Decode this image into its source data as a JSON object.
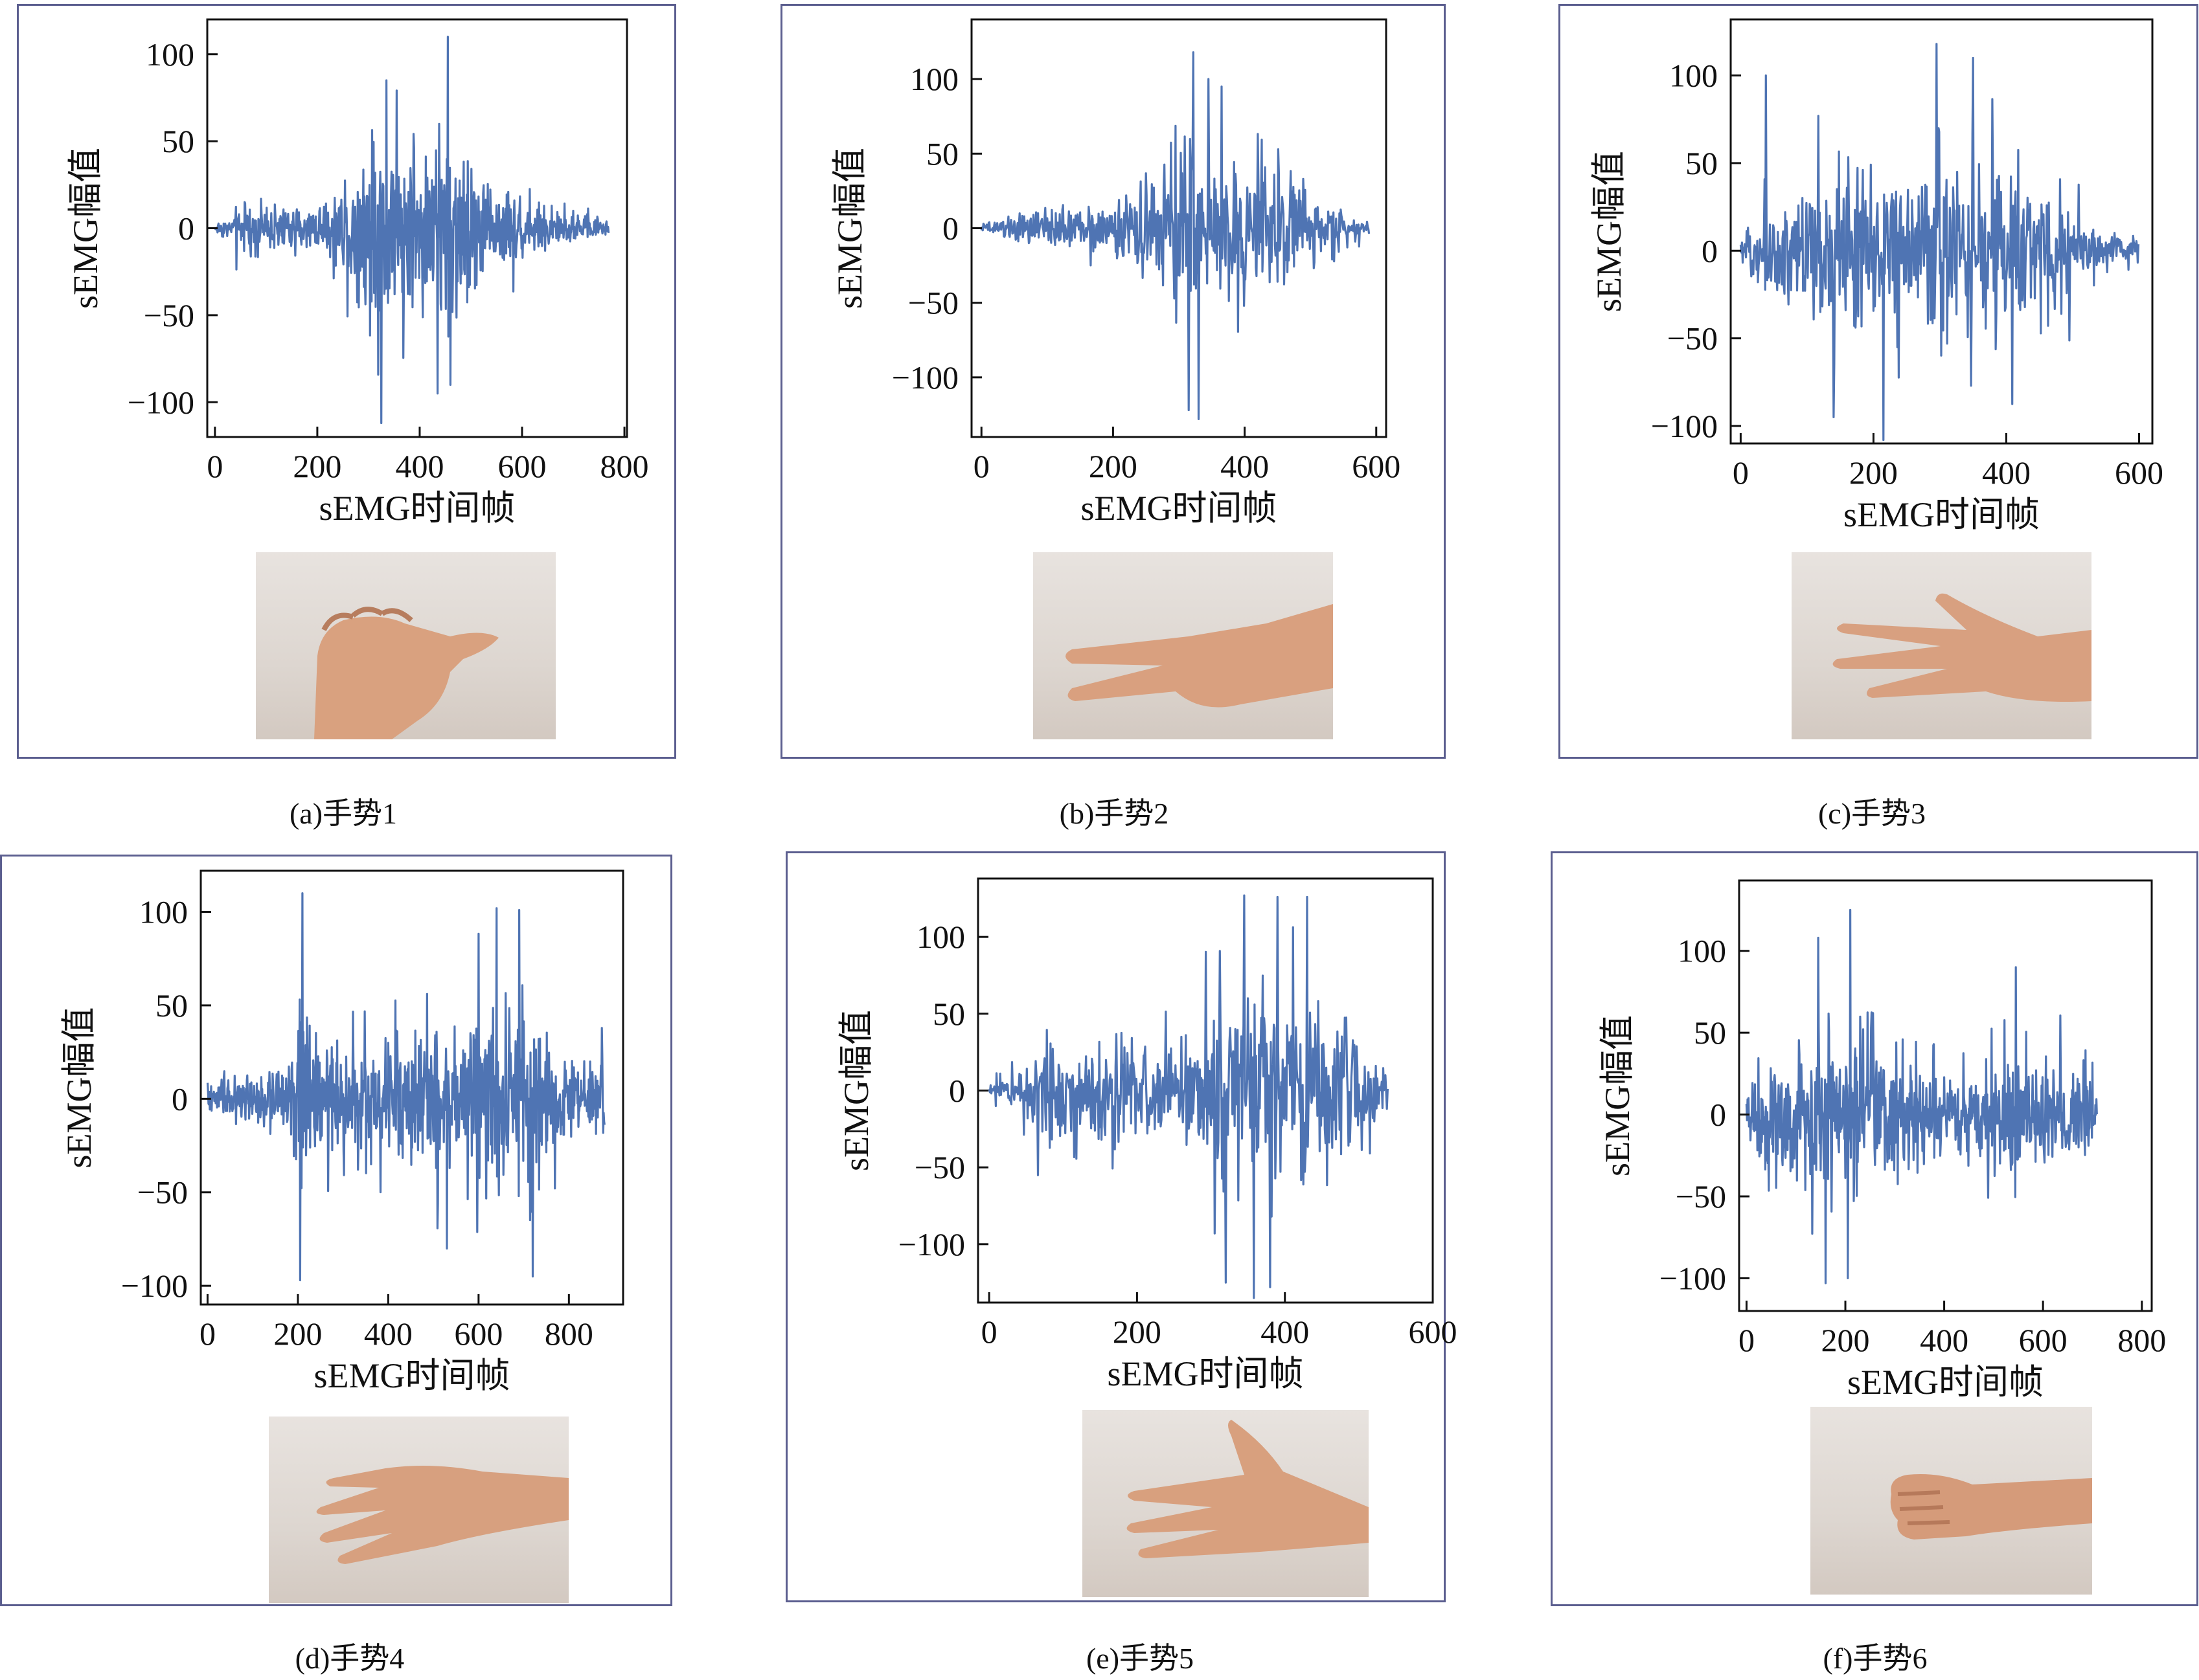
{
  "panels": [
    {
      "caption": "(a)手势1",
      "image": "hand-gesture-thumb-out-fist",
      "chart_data": {
        "type": "line",
        "xlabel": "sEMG时间帧",
        "ylabel": "sEMG幅值",
        "xlim": [
          -15,
          805
        ],
        "ylim": [
          -120,
          120
        ],
        "xticks": [
          0,
          200,
          400,
          600,
          800
        ],
        "yticks": [
          -100,
          -50,
          0,
          50,
          100
        ],
        "color": "#4f74b3",
        "n_points": 770,
        "envelope": [
          [
            0,
            6
          ],
          [
            60,
            25
          ],
          [
            120,
            22
          ],
          [
            180,
            18
          ],
          [
            240,
            40
          ],
          [
            280,
            75
          ],
          [
            320,
            105
          ],
          [
            360,
            85
          ],
          [
            400,
            80
          ],
          [
            450,
            105
          ],
          [
            500,
            75
          ],
          [
            540,
            45
          ],
          [
            580,
            40
          ],
          [
            620,
            25
          ],
          [
            680,
            18
          ],
          [
            760,
            10
          ]
        ],
        "peaks": [
          [
            325,
            -112
          ],
          [
            455,
            110
          ],
          [
            435,
            -95
          ],
          [
            335,
            85
          ],
          [
            460,
            -90
          ]
        ]
      }
    },
    {
      "caption": "(b)手势2",
      "image": "hand-gesture-two-fingers",
      "chart_data": {
        "type": "line",
        "xlabel": "sEMG时间帧",
        "ylabel": "sEMG幅值",
        "xlim": [
          -15,
          615
        ],
        "ylim": [
          -140,
          140
        ],
        "xticks": [
          0,
          200,
          400,
          600
        ],
        "yticks": [
          -100,
          -50,
          0,
          50,
          100
        ],
        "color": "#4f74b3",
        "n_points": 590,
        "envelope": [
          [
            0,
            5
          ],
          [
            40,
            15
          ],
          [
            80,
            25
          ],
          [
            150,
            25
          ],
          [
            220,
            40
          ],
          [
            270,
            70
          ],
          [
            310,
            110
          ],
          [
            340,
            95
          ],
          [
            380,
            85
          ],
          [
            430,
            75
          ],
          [
            480,
            60
          ],
          [
            530,
            30
          ],
          [
            580,
            8
          ]
        ],
        "peaks": [
          [
            322,
            118
          ],
          [
            330,
            -128
          ],
          [
            315,
            -122
          ],
          [
            345,
            100
          ],
          [
            365,
            95
          ]
        ]
      }
    },
    {
      "caption": "(c)手势3",
      "image": "hand-gesture-three-fingers",
      "chart_data": {
        "type": "line",
        "xlabel": "sEMG时间帧",
        "ylabel": "sEMG幅值",
        "xlim": [
          -15,
          620
        ],
        "ylim": [
          -110,
          132
        ],
        "xticks": [
          0,
          200,
          400,
          600
        ],
        "yticks": [
          -100,
          -50,
          0,
          50,
          100
        ],
        "color": "#4f74b3",
        "n_points": 600,
        "envelope": [
          [
            0,
            10
          ],
          [
            50,
            55
          ],
          [
            100,
            60
          ],
          [
            140,
            80
          ],
          [
            200,
            85
          ],
          [
            260,
            80
          ],
          [
            300,
            110
          ],
          [
            360,
            90
          ],
          [
            420,
            85
          ],
          [
            470,
            60
          ],
          [
            520,
            25
          ],
          [
            600,
            12
          ]
        ],
        "peaks": [
          [
            295,
            118
          ],
          [
            215,
            -108
          ],
          [
            350,
            110
          ],
          [
            38,
            100
          ],
          [
            140,
            -95
          ]
        ]
      }
    },
    {
      "caption": "(d)手势4",
      "image": "hand-gesture-open-palm",
      "chart_data": {
        "type": "line",
        "xlabel": "sEMG时间帧",
        "ylabel": "sEMG幅值",
        "xlim": [
          -15,
          920
        ],
        "ylim": [
          -110,
          122
        ],
        "xticks": [
          0,
          200,
          400,
          600,
          800
        ],
        "yticks": [
          -100,
          -50,
          0,
          50,
          100
        ],
        "color": "#4f74b3",
        "n_points": 880,
        "envelope": [
          [
            0,
            10
          ],
          [
            60,
            20
          ],
          [
            120,
            25
          ],
          [
            180,
            40
          ],
          [
            210,
            95
          ],
          [
            240,
            55
          ],
          [
            320,
            45
          ],
          [
            400,
            55
          ],
          [
            450,
            65
          ],
          [
            520,
            70
          ],
          [
            600,
            80
          ],
          [
            660,
            100
          ],
          [
            720,
            80
          ],
          [
            780,
            45
          ],
          [
            840,
            30
          ],
          [
            880,
            50
          ]
        ],
        "peaks": [
          [
            210,
            110
          ],
          [
            205,
            -97
          ],
          [
            640,
            102
          ],
          [
            690,
            101
          ],
          [
            720,
            -95
          ]
        ]
      }
    },
    {
      "caption": "(e)手势5",
      "image": "hand-gesture-spread-palm",
      "chart_data": {
        "type": "line",
        "xlabel": "sEMG时间帧",
        "ylabel": "sEMG幅值",
        "xlim": [
          -15,
          600
        ],
        "ylim": [
          -138,
          138
        ],
        "xticks": [
          0,
          200,
          400,
          600
        ],
        "yticks": [
          -100,
          -50,
          0,
          50,
          100
        ],
        "color": "#4f74b3",
        "n_points": 540,
        "envelope": [
          [
            0,
            10
          ],
          [
            40,
            25
          ],
          [
            70,
            70
          ],
          [
            120,
            50
          ],
          [
            180,
            65
          ],
          [
            240,
            55
          ],
          [
            280,
            70
          ],
          [
            320,
            110
          ],
          [
            360,
            125
          ],
          [
            400,
            120
          ],
          [
            440,
            110
          ],
          [
            470,
            95
          ],
          [
            500,
            60
          ],
          [
            540,
            25
          ]
        ],
        "peaks": [
          [
            345,
            127
          ],
          [
            380,
            -128
          ],
          [
            430,
            126
          ],
          [
            320,
            -125
          ],
          [
            390,
            126
          ]
        ]
      }
    },
    {
      "caption": "(f)手势6",
      "image": "hand-gesture-fist",
      "chart_data": {
        "type": "line",
        "xlabel": "sEMG时间帧",
        "ylabel": "sEMG幅值",
        "xlim": [
          -15,
          820
        ],
        "ylim": [
          -120,
          143
        ],
        "xticks": [
          0,
          200,
          400,
          600,
          800
        ],
        "yticks": [
          -100,
          -50,
          0,
          50,
          100
        ],
        "color": "#4f74b3",
        "n_points": 710,
        "envelope": [
          [
            0,
            30
          ],
          [
            40,
            75
          ],
          [
            100,
            70
          ],
          [
            150,
            95
          ],
          [
            200,
            100
          ],
          [
            260,
            80
          ],
          [
            320,
            60
          ],
          [
            380,
            45
          ],
          [
            420,
            50
          ],
          [
            480,
            50
          ],
          [
            540,
            75
          ],
          [
            600,
            50
          ],
          [
            660,
            55
          ],
          [
            710,
            40
          ]
        ],
        "peaks": [
          [
            210,
            125
          ],
          [
            160,
            -103
          ],
          [
            205,
            -100
          ],
          [
            145,
            108
          ],
          [
            545,
            90
          ]
        ]
      }
    }
  ]
}
